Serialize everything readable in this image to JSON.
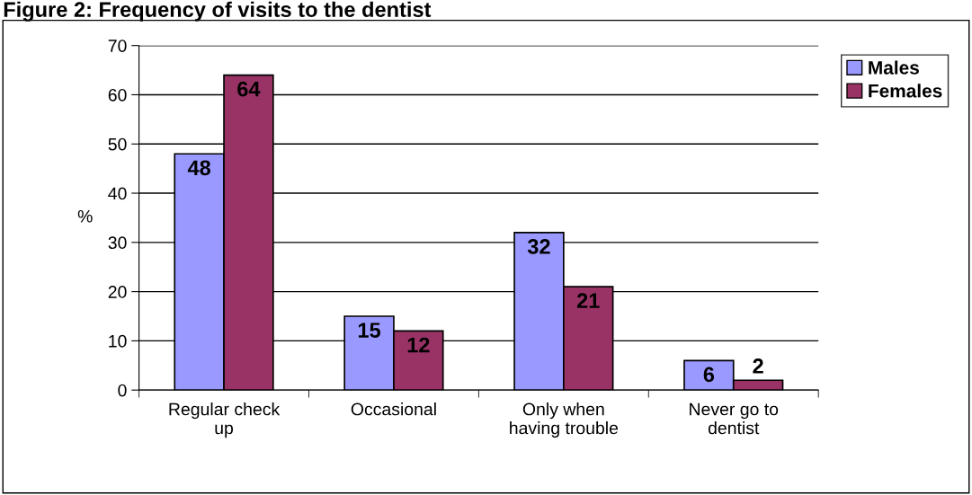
{
  "chart_data": {
    "type": "bar",
    "title": "Figure 2: Frequency of visits to the dentist",
    "ylabel": "%",
    "categories": [
      "Regular check\nup",
      "Occasional",
      "Only when\nhaving trouble",
      "Never go to\ndentist"
    ],
    "series": [
      {
        "name": "Males",
        "color": "#9999ff",
        "values": [
          48,
          15,
          32,
          6
        ]
      },
      {
        "name": "Females",
        "color": "#993366",
        "values": [
          64,
          12,
          21,
          2
        ]
      }
    ],
    "ylim": [
      0,
      70
    ],
    "yticks": [
      0,
      10,
      20,
      30,
      40,
      50,
      60,
      70
    ],
    "grid": "y",
    "legend": "top right",
    "data_labels": true
  }
}
